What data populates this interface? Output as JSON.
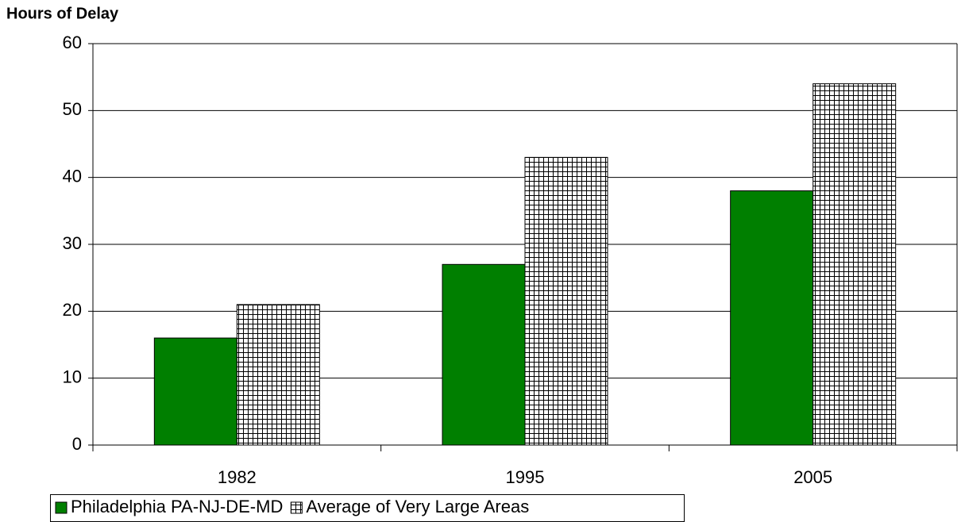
{
  "chart_data": {
    "type": "bar",
    "title": "Hours of Delay",
    "categories": [
      "1982",
      "1995",
      "2005"
    ],
    "series": [
      {
        "name": "Philadelphia PA-NJ-DE-MD",
        "color": "#007f00",
        "values": [
          16,
          27,
          38
        ]
      },
      {
        "name": "Average of Very Large Areas",
        "color": "#000000",
        "pattern": "grid",
        "values": [
          21,
          43,
          54
        ]
      }
    ],
    "ylim": [
      0,
      60
    ],
    "yticks": [
      0,
      10,
      20,
      30,
      40,
      50,
      60
    ],
    "grid": true,
    "legend": "bottom"
  }
}
